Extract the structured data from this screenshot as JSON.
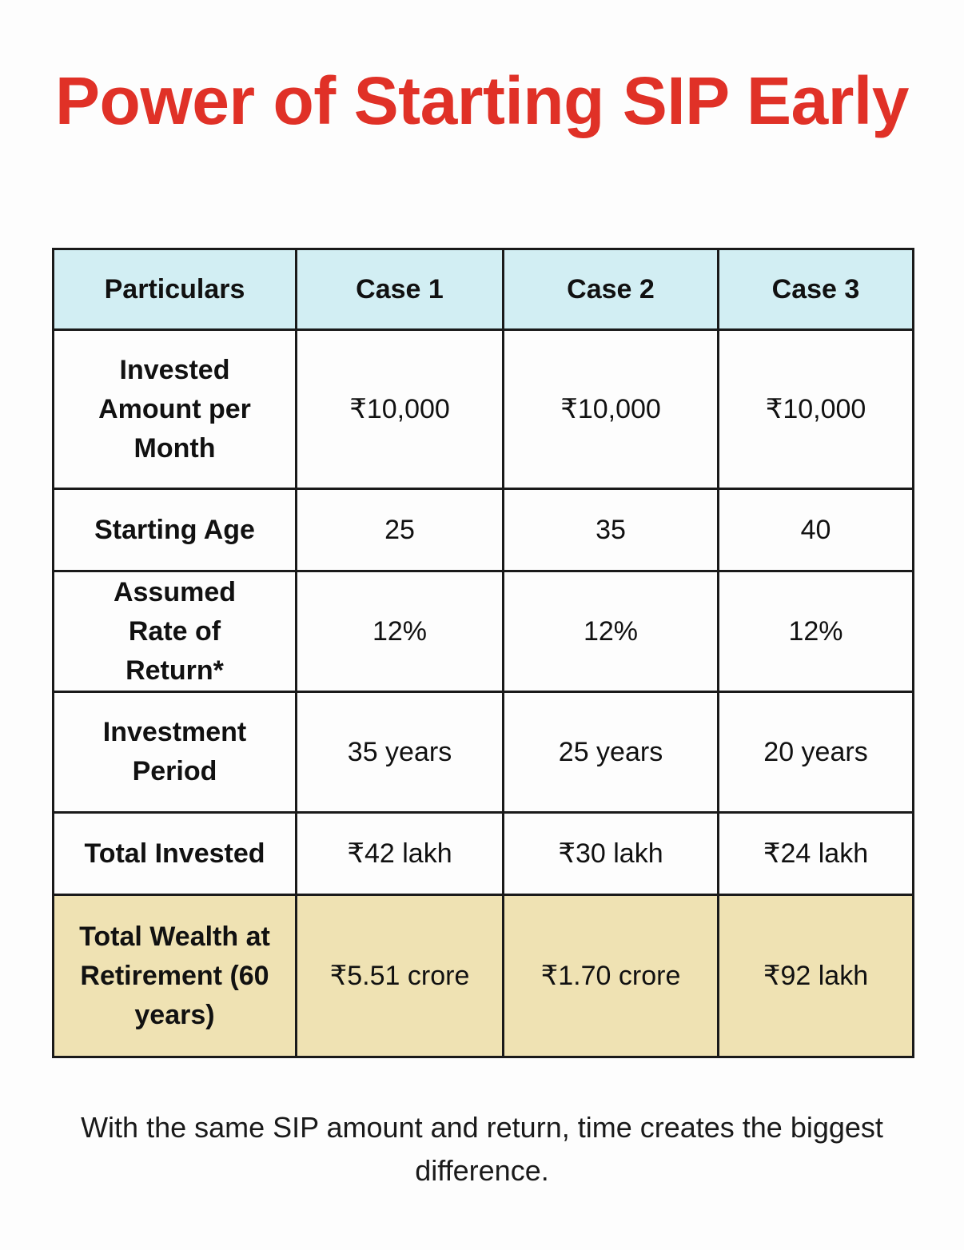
{
  "title": "Power of Starting SIP Early",
  "table": {
    "headers": [
      "Particulars",
      "Case 1",
      "Case 2",
      "Case 3"
    ],
    "rows": [
      {
        "label": "Invested Amount per Month",
        "values": [
          "₹10,000",
          "₹10,000",
          "₹10,000"
        ]
      },
      {
        "label": "Starting Age",
        "values": [
          "25",
          "35",
          "40"
        ]
      },
      {
        "label": "Assumed Rate of Return*",
        "values": [
          "12%",
          "12%",
          "12%"
        ]
      },
      {
        "label": "Investment Period",
        "values": [
          "35 years",
          "25 years",
          "20 years"
        ]
      },
      {
        "label": "Total Invested",
        "values": [
          "₹42 lakh",
          "₹30 lakh",
          "₹24 lakh"
        ]
      },
      {
        "label": "Total Wealth at Retirement (60 years)",
        "values": [
          "₹5.51 crore",
          "₹1.70 crore",
          "₹92 lakh"
        ]
      }
    ]
  },
  "footer": "With the same SIP amount and return, time creates the biggest difference.",
  "colors": {
    "title": "#e03127",
    "header_bg": "#d2eef3",
    "highlight_row_bg": "#efe2b3",
    "border": "#1a1a1a"
  }
}
